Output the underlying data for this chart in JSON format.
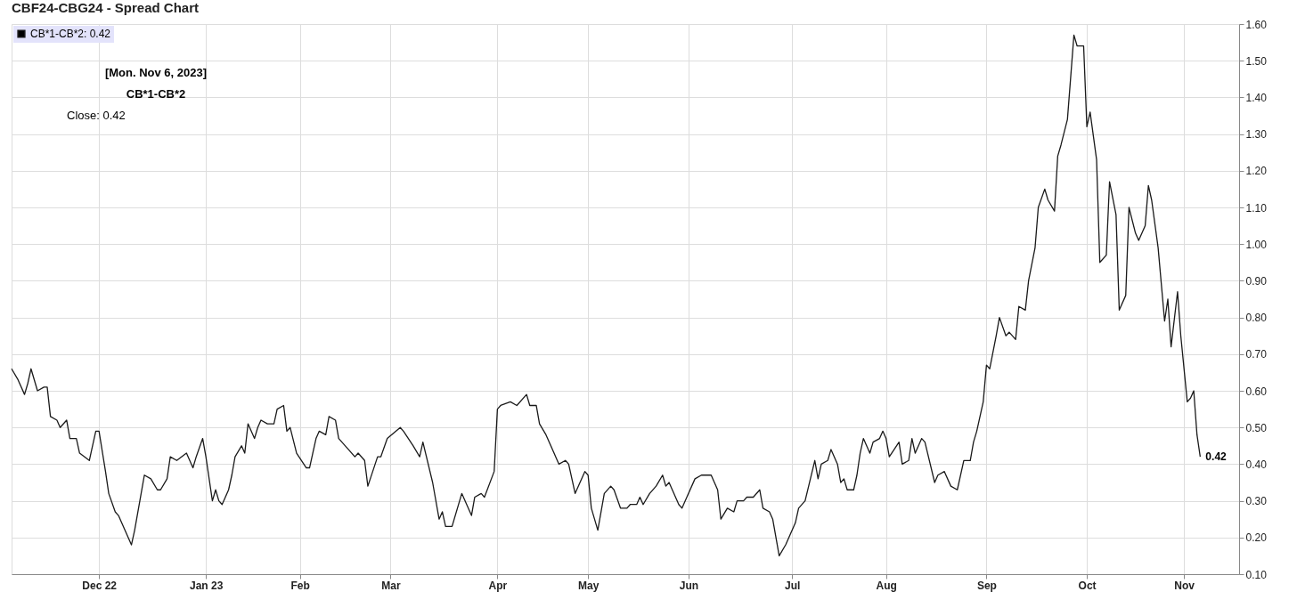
{
  "chart_data": {
    "type": "line",
    "title": "CBF24-CBG24 - Spread Chart",
    "x": [
      "2022-11-04",
      "2022-11-06",
      "2022-11-08",
      "2022-11-09",
      "2022-11-10",
      "2022-11-12",
      "2022-11-14",
      "2022-11-15",
      "2022-11-16",
      "2022-11-18",
      "2022-11-19",
      "2022-11-21",
      "2022-11-22",
      "2022-11-24",
      "2022-11-25",
      "2022-11-28",
      "2022-11-30",
      "2022-12-01",
      "2022-12-03",
      "2022-12-04",
      "2022-12-06",
      "2022-12-07",
      "2022-12-09",
      "2022-12-11",
      "2022-12-12",
      "2022-12-14",
      "2022-12-15",
      "2022-12-17",
      "2022-12-19",
      "2022-12-20",
      "2022-12-22",
      "2022-12-23",
      "2022-12-25",
      "2022-12-28",
      "2022-12-30",
      "2022-12-31",
      "2023-01-02",
      "2023-01-03",
      "2023-01-05",
      "2023-01-06",
      "2023-01-07",
      "2023-01-08",
      "2023-01-10",
      "2023-01-11",
      "2023-01-12",
      "2023-01-14",
      "2023-01-15",
      "2023-01-16",
      "2023-01-18",
      "2023-01-19",
      "2023-01-20",
      "2023-01-22",
      "2023-01-24",
      "2023-01-25",
      "2023-01-27",
      "2023-01-28",
      "2023-01-29",
      "2023-01-31",
      "2023-02-03",
      "2023-02-04",
      "2023-02-06",
      "2023-02-07",
      "2023-02-09",
      "2023-02-10",
      "2023-02-12",
      "2023-02-13",
      "2023-02-16",
      "2023-02-18",
      "2023-02-19",
      "2023-02-21",
      "2023-02-22",
      "2023-02-25",
      "2023-02-26",
      "2023-02-28",
      "2023-03-04",
      "2023-03-05",
      "2023-03-08",
      "2023-03-10",
      "2023-03-11",
      "2023-03-14",
      "2023-03-16",
      "2023-03-17",
      "2023-03-18",
      "2023-03-20",
      "2023-03-23",
      "2023-03-26",
      "2023-03-27",
      "2023-03-29",
      "2023-03-30",
      "2023-04-02",
      "2023-04-03",
      "2023-04-04",
      "2023-04-07",
      "2023-04-09",
      "2023-04-12",
      "2023-04-13",
      "2023-04-15",
      "2023-04-16",
      "2023-04-18",
      "2023-04-21",
      "2023-04-22",
      "2023-04-24",
      "2023-04-25",
      "2023-04-27",
      "2023-04-30",
      "2023-05-01",
      "2023-05-02",
      "2023-05-04",
      "2023-05-06",
      "2023-05-08",
      "2023-05-09",
      "2023-05-11",
      "2023-05-13",
      "2023-05-14",
      "2023-05-16",
      "2023-05-17",
      "2023-05-18",
      "2023-05-20",
      "2023-05-22",
      "2023-05-24",
      "2023-05-25",
      "2023-05-26",
      "2023-05-27",
      "2023-05-29",
      "2023-05-30",
      "2023-05-31",
      "2023-06-03",
      "2023-06-05",
      "2023-06-08",
      "2023-06-10",
      "2023-06-11",
      "2023-06-13",
      "2023-06-15",
      "2023-06-16",
      "2023-06-18",
      "2023-06-19",
      "2023-06-21",
      "2023-06-23",
      "2023-06-24",
      "2023-06-26",
      "2023-06-27",
      "2023-06-29",
      "2023-07-01",
      "2023-07-04",
      "2023-07-05",
      "2023-07-07",
      "2023-07-10",
      "2023-07-11",
      "2023-07-12",
      "2023-07-14",
      "2023-07-15",
      "2023-07-17",
      "2023-07-18",
      "2023-07-19",
      "2023-07-20",
      "2023-07-22",
      "2023-07-23",
      "2023-07-24",
      "2023-07-25",
      "2023-07-27",
      "2023-07-28",
      "2023-07-30",
      "2023-07-31",
      "2023-08-01",
      "2023-08-02",
      "2023-08-05",
      "2023-08-06",
      "2023-08-08",
      "2023-08-09",
      "2023-08-10",
      "2023-08-12",
      "2023-08-13",
      "2023-08-16",
      "2023-08-17",
      "2023-08-19",
      "2023-08-21",
      "2023-08-23",
      "2023-08-25",
      "2023-08-27",
      "2023-08-28",
      "2023-08-29",
      "2023-08-31",
      "2023-09-01",
      "2023-09-02",
      "2023-09-04",
      "2023-09-05",
      "2023-09-07",
      "2023-09-08",
      "2023-09-10",
      "2023-09-11",
      "2023-09-13",
      "2023-09-14",
      "2023-09-16",
      "2023-09-17",
      "2023-09-19",
      "2023-09-20",
      "2023-09-22",
      "2023-09-23",
      "2023-09-24",
      "2023-09-26",
      "2023-09-28",
      "2023-09-29",
      "2023-10-01",
      "2023-10-02",
      "2023-10-03",
      "2023-10-05",
      "2023-10-06",
      "2023-10-08",
      "2023-10-09",
      "2023-10-11",
      "2023-10-12",
      "2023-10-14",
      "2023-10-15",
      "2023-10-17",
      "2023-10-18",
      "2023-10-20",
      "2023-10-21",
      "2023-10-22",
      "2023-10-24",
      "2023-10-26",
      "2023-10-27",
      "2023-10-28",
      "2023-10-30",
      "2023-10-31",
      "2023-11-02",
      "2023-11-03",
      "2023-11-04",
      "2023-11-05",
      "2023-11-06"
    ],
    "series": [
      {
        "name": "CB*1-CB*2: 0.42",
        "color": "#1a1a1a",
        "values": [
          0.66,
          0.63,
          0.59,
          0.62,
          0.66,
          0.6,
          0.61,
          0.61,
          0.53,
          0.52,
          0.5,
          0.52,
          0.47,
          0.47,
          0.43,
          0.41,
          0.49,
          0.49,
          0.38,
          0.32,
          0.27,
          0.26,
          0.22,
          0.18,
          0.22,
          0.32,
          0.37,
          0.36,
          0.33,
          0.33,
          0.36,
          0.42,
          0.41,
          0.43,
          0.39,
          0.42,
          0.47,
          0.42,
          0.3,
          0.33,
          0.3,
          0.29,
          0.33,
          0.37,
          0.42,
          0.45,
          0.43,
          0.51,
          0.47,
          0.5,
          0.52,
          0.51,
          0.51,
          0.55,
          0.56,
          0.49,
          0.5,
          0.43,
          0.39,
          0.39,
          0.47,
          0.49,
          0.48,
          0.53,
          0.52,
          0.47,
          0.44,
          0.42,
          0.43,
          0.41,
          0.34,
          0.42,
          0.42,
          0.47,
          0.5,
          0.49,
          0.45,
          0.42,
          0.46,
          0.35,
          0.25,
          0.27,
          0.23,
          0.23,
          0.32,
          0.26,
          0.31,
          0.32,
          0.31,
          0.38,
          0.55,
          0.56,
          0.57,
          0.56,
          0.59,
          0.56,
          0.56,
          0.51,
          0.48,
          0.42,
          0.4,
          0.41,
          0.4,
          0.32,
          0.38,
          0.37,
          0.28,
          0.22,
          0.32,
          0.34,
          0.33,
          0.28,
          0.28,
          0.29,
          0.29,
          0.31,
          0.29,
          0.32,
          0.34,
          0.37,
          0.34,
          0.35,
          0.33,
          0.29,
          0.28,
          0.3,
          0.36,
          0.37,
          0.37,
          0.33,
          0.25,
          0.28,
          0.27,
          0.3,
          0.3,
          0.31,
          0.31,
          0.33,
          0.28,
          0.27,
          0.25,
          0.15,
          0.18,
          0.24,
          0.28,
          0.3,
          0.41,
          0.36,
          0.4,
          0.41,
          0.44,
          0.4,
          0.35,
          0.36,
          0.33,
          0.33,
          0.37,
          0.43,
          0.47,
          0.43,
          0.46,
          0.47,
          0.49,
          0.47,
          0.42,
          0.46,
          0.4,
          0.41,
          0.47,
          0.43,
          0.47,
          0.46,
          0.35,
          0.37,
          0.38,
          0.34,
          0.33,
          0.41,
          0.41,
          0.46,
          0.49,
          0.57,
          0.67,
          0.66,
          0.75,
          0.8,
          0.75,
          0.76,
          0.74,
          0.83,
          0.82,
          0.9,
          0.99,
          1.1,
          1.15,
          1.12,
          1.09,
          1.24,
          1.27,
          1.34,
          1.57,
          1.54,
          1.54,
          1.32,
          1.36,
          1.23,
          0.95,
          0.97,
          1.17,
          1.08,
          0.82,
          0.86,
          1.1,
          1.03,
          1.01,
          1.05,
          1.16,
          1.12,
          0.99,
          0.79,
          0.85,
          0.72,
          0.87,
          0.75,
          0.57,
          0.58,
          0.6,
          0.48,
          0.42
        ]
      }
    ],
    "xlim": [
      "2022-11-04",
      "2023-11-18"
    ],
    "xticks": [
      {
        "value": "2022-12-01",
        "label": "Dec 22"
      },
      {
        "value": "2023-01-03",
        "label": "Jan 23"
      },
      {
        "value": "2023-02-01",
        "label": "Feb"
      },
      {
        "value": "2023-03-01",
        "label": "Mar"
      },
      {
        "value": "2023-04-03",
        "label": "Apr"
      },
      {
        "value": "2023-05-01",
        "label": "May"
      },
      {
        "value": "2023-06-01",
        "label": "Jun"
      },
      {
        "value": "2023-07-03",
        "label": "Jul"
      },
      {
        "value": "2023-08-01",
        "label": "Aug"
      },
      {
        "value": "2023-09-01",
        "label": "Sep"
      },
      {
        "value": "2023-10-02",
        "label": "Oct"
      },
      {
        "value": "2023-11-01",
        "label": "Nov"
      }
    ],
    "ylim": [
      0.1,
      1.6
    ],
    "yticks": [
      {
        "value": 0.1,
        "label": "0.10"
      },
      {
        "value": 0.2,
        "label": "0.20"
      },
      {
        "value": 0.3,
        "label": "0.30"
      },
      {
        "value": 0.4,
        "label": "0.40"
      },
      {
        "value": 0.5,
        "label": "0.50"
      },
      {
        "value": 0.6,
        "label": "0.60"
      },
      {
        "value": 0.7,
        "label": "0.70"
      },
      {
        "value": 0.8,
        "label": "0.80"
      },
      {
        "value": 0.9,
        "label": "0.90"
      },
      {
        "value": 1.0,
        "label": "1.00"
      },
      {
        "value": 1.1,
        "label": "1.10"
      },
      {
        "value": 1.2,
        "label": "1.20"
      },
      {
        "value": 1.3,
        "label": "1.30"
      },
      {
        "value": 1.4,
        "label": "1.40"
      },
      {
        "value": 1.5,
        "label": "1.50"
      },
      {
        "value": 1.6,
        "label": "1.60"
      }
    ],
    "grid": true,
    "legend": "top left",
    "annotations": [
      "[Mon. Nov 6, 2023]",
      "CB*1-CB*2",
      "Close: 0.42",
      {
        "text": "0.42",
        "x": "2023-11-06",
        "y": 0.42
      }
    ]
  }
}
